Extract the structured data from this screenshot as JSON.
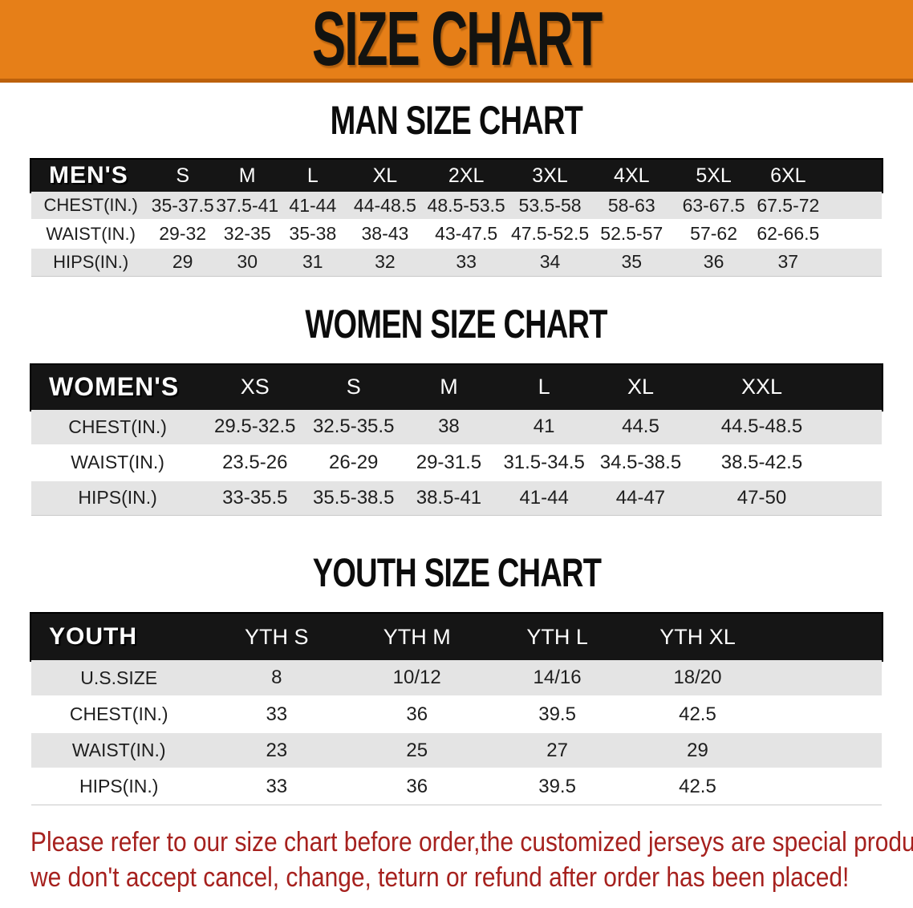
{
  "banner": {
    "title": "SIZE CHART",
    "bg_color": "#e67f18",
    "border_color": "#bc610c"
  },
  "sections": [
    {
      "title": "MAN SIZE CHART",
      "header_label": "MEN'S",
      "columns": [
        "S",
        "M",
        "L",
        "XL",
        "2XL",
        "3XL",
        "4XL",
        "5XL",
        "6XL"
      ],
      "rows": [
        {
          "label": "CHEST(IN.)",
          "values": [
            "35-37.5",
            "37.5-41",
            "41-44",
            "44-48.5",
            "48.5-53.5",
            "53.5-58",
            "58-63",
            "63-67.5",
            "67.5-72"
          ]
        },
        {
          "label": "WAIST(IN.)",
          "values": [
            "29-32",
            "32-35",
            "35-38",
            "38-43",
            "43-47.5",
            "47.5-52.5",
            "52.5-57",
            "57-62",
            "62-66.5"
          ]
        },
        {
          "label": "HIPS(IN.)",
          "values": [
            "29",
            "30",
            "31",
            "32",
            "33",
            "34",
            "35",
            "36",
            "37"
          ]
        }
      ]
    },
    {
      "title": "WOMEN SIZE CHART",
      "header_label": "WOMEN'S",
      "columns": [
        "XS",
        "S",
        "M",
        "L",
        "XL",
        "XXL"
      ],
      "rows": [
        {
          "label": "CHEST(IN.)",
          "values": [
            "29.5-32.5",
            "32.5-35.5",
            "38",
            "41",
            "44.5",
            "44.5-48.5"
          ]
        },
        {
          "label": "WAIST(IN.)",
          "values": [
            "23.5-26",
            "26-29",
            "29-31.5",
            "31.5-34.5",
            "34.5-38.5",
            "38.5-42.5"
          ]
        },
        {
          "label": "HIPS(IN.)",
          "values": [
            "33-35.5",
            "35.5-38.5",
            "38.5-41",
            "41-44",
            "44-47",
            "47-50"
          ]
        }
      ]
    },
    {
      "title": "YOUTH SIZE CHART",
      "header_label": "YOUTH",
      "columns": [
        "YTH S",
        "YTH M",
        "YTH L",
        "YTH XL"
      ],
      "rows": [
        {
          "label": "U.S.SIZE",
          "values": [
            "8",
            "10/12",
            "14/16",
            "18/20"
          ]
        },
        {
          "label": "CHEST(IN.)",
          "values": [
            "33",
            "36",
            "39.5",
            "42.5"
          ]
        },
        {
          "label": "WAIST(IN.)",
          "values": [
            "23",
            "25",
            "27",
            "29"
          ]
        },
        {
          "label": "HIPS(IN.)",
          "values": [
            "33",
            "36",
            "39.5",
            "42.5"
          ]
        }
      ]
    }
  ],
  "disclaimer": {
    "line1": "Please refer to our size chart before order,the customized jerseys are special products,",
    "line2": "we don't accept cancel, change, teturn or refund after order has been placed!",
    "color": "#a6211e"
  },
  "table_colors": {
    "header_bar": "#151515",
    "header_text": "#fdfdfd",
    "gray_row": "#e4e4e4",
    "white_row": "#ffffff",
    "cell_text": "#1e1e1e"
  }
}
